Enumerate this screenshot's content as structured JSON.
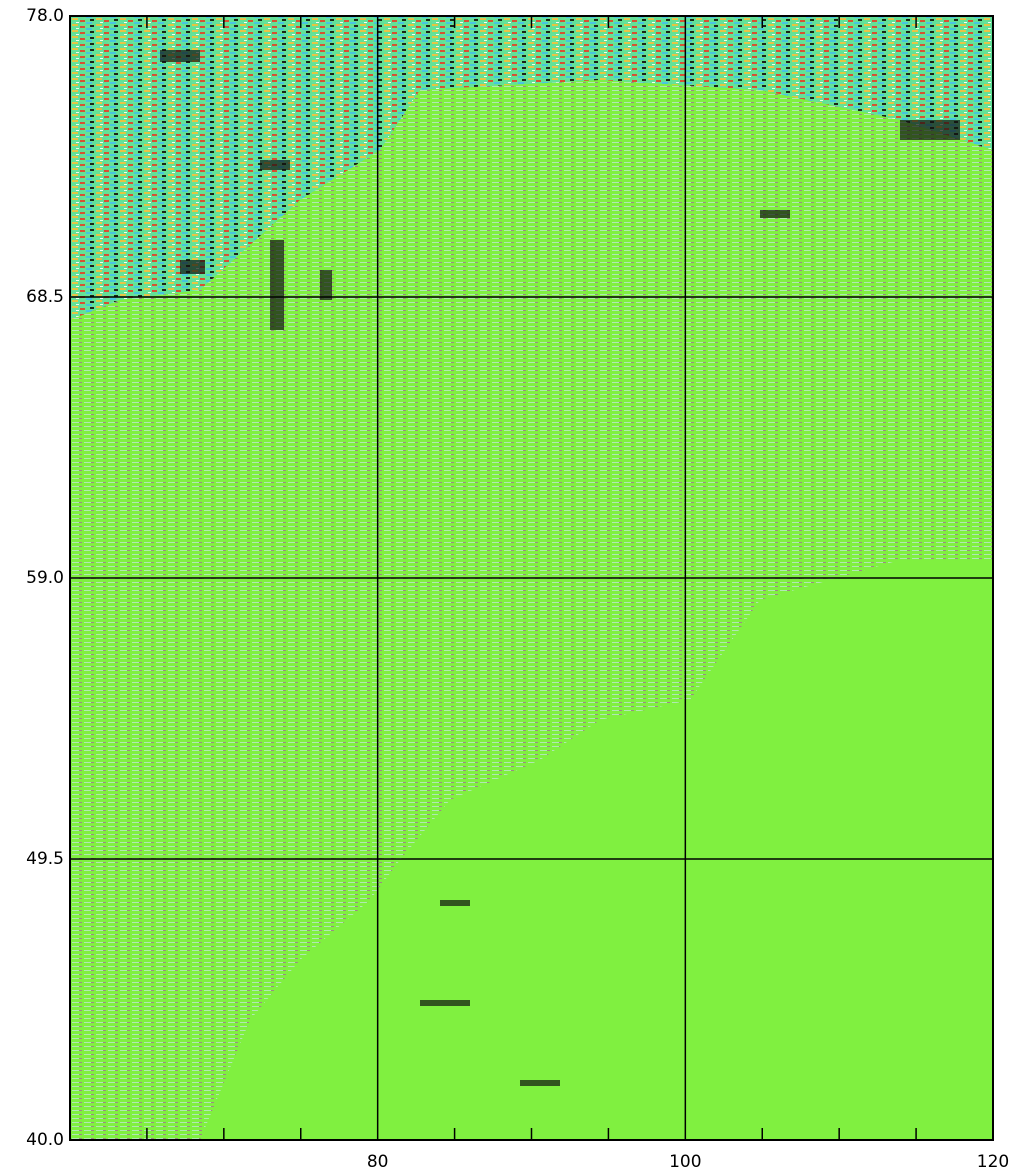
{
  "chart_data": {
    "type": "map",
    "xlim": [
      60,
      120
    ],
    "ylim": [
      40,
      78
    ],
    "xticks": [
      80,
      100,
      120
    ],
    "xminor_ticks": [
      65,
      70,
      75,
      85,
      90,
      95,
      105,
      110,
      115
    ],
    "yticks": [
      {
        "value": 78,
        "label": "78.0"
      },
      68.5,
      {
        "value": 59,
        "label": "59.0"
      },
      49.5,
      {
        "value": 40,
        "label": "40.0"
      }
    ],
    "grid": true,
    "color": "#80f040"
  }
}
